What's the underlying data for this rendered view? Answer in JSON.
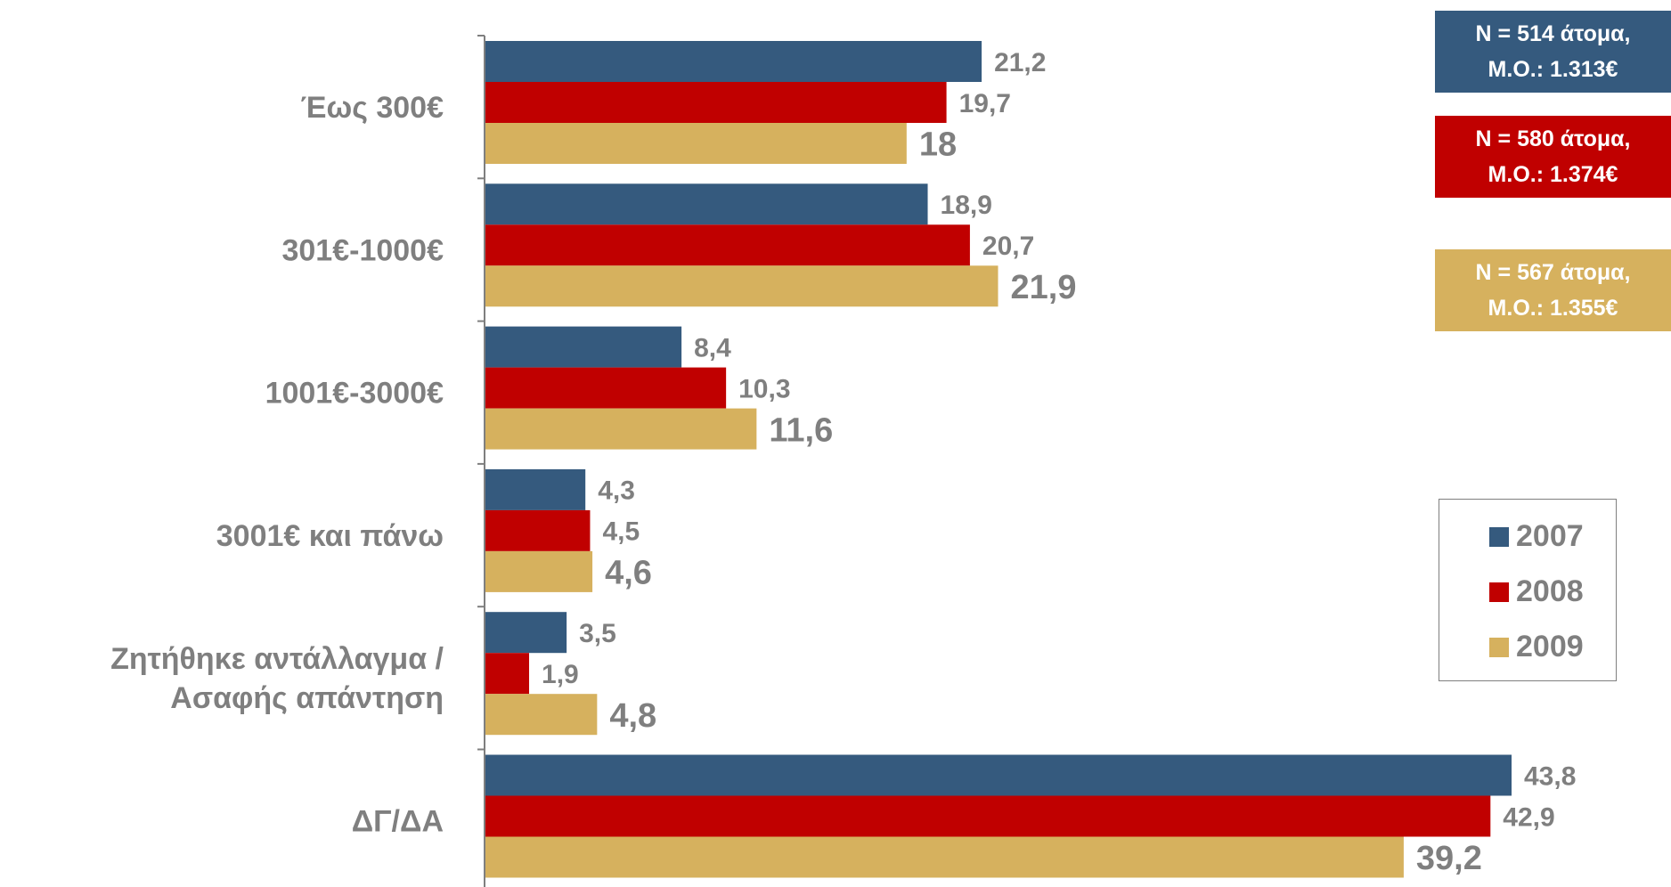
{
  "chart_data": {
    "type": "bar",
    "orientation": "horizontal",
    "categories": [
      "Έως 300€",
      "301€-1000€",
      "1001€-3000€",
      "3001€ και πάνω",
      "Ζητήθηκε αντάλλαγμα / Ασαφής απάντηση",
      "ΔΓ/ΔΑ"
    ],
    "category_lines": [
      [
        "Έως 300€"
      ],
      [
        "301€-1000€"
      ],
      [
        "1001€-3000€"
      ],
      [
        "3001€ και πάνω"
      ],
      [
        "Ζητήθηκε αντάλλαγμα /",
        "Ασαφής απάντηση"
      ],
      [
        "ΔΓ/ΔΑ"
      ]
    ],
    "series": [
      {
        "name": "2007",
        "color": "#355a7e",
        "values": [
          21.2,
          18.9,
          8.4,
          4.3,
          3.5,
          43.8
        ],
        "labels": [
          "21,2",
          "18,9",
          "8,4",
          "4,3",
          "3,5",
          "43,8"
        ]
      },
      {
        "name": "2008",
        "color": "#c00000",
        "values": [
          19.7,
          20.7,
          10.3,
          4.5,
          1.9,
          42.9
        ],
        "labels": [
          "19,7",
          "20,7",
          "10,3",
          "4,5",
          "1,9",
          "42,9"
        ]
      },
      {
        "name": "2009",
        "color": "#d6b15e",
        "values": [
          18,
          21.9,
          11.6,
          4.6,
          4.8,
          39.2
        ],
        "labels": [
          "18",
          "21,9",
          "11,6",
          "4,6",
          "4,8",
          "39,2"
        ]
      }
    ],
    "legend_position": "right",
    "grid": false
  },
  "info_boxes": [
    {
      "line1": "N = 514 άτομα,",
      "line2": "M.O.: 1.313€",
      "color": "#355a7e"
    },
    {
      "line1": "N = 580 άτομα,",
      "line2": "M.O.: 1.374€",
      "color": "#c00000"
    },
    {
      "line1": "N = 567 άτομα,",
      "line2": "M.O.: 1.355€",
      "color": "#d6b15e"
    }
  ],
  "legend": [
    {
      "label": "2007",
      "color": "#355a7e"
    },
    {
      "label": "2008",
      "color": "#c00000"
    },
    {
      "label": "2009",
      "color": "#d6b15e"
    }
  ]
}
